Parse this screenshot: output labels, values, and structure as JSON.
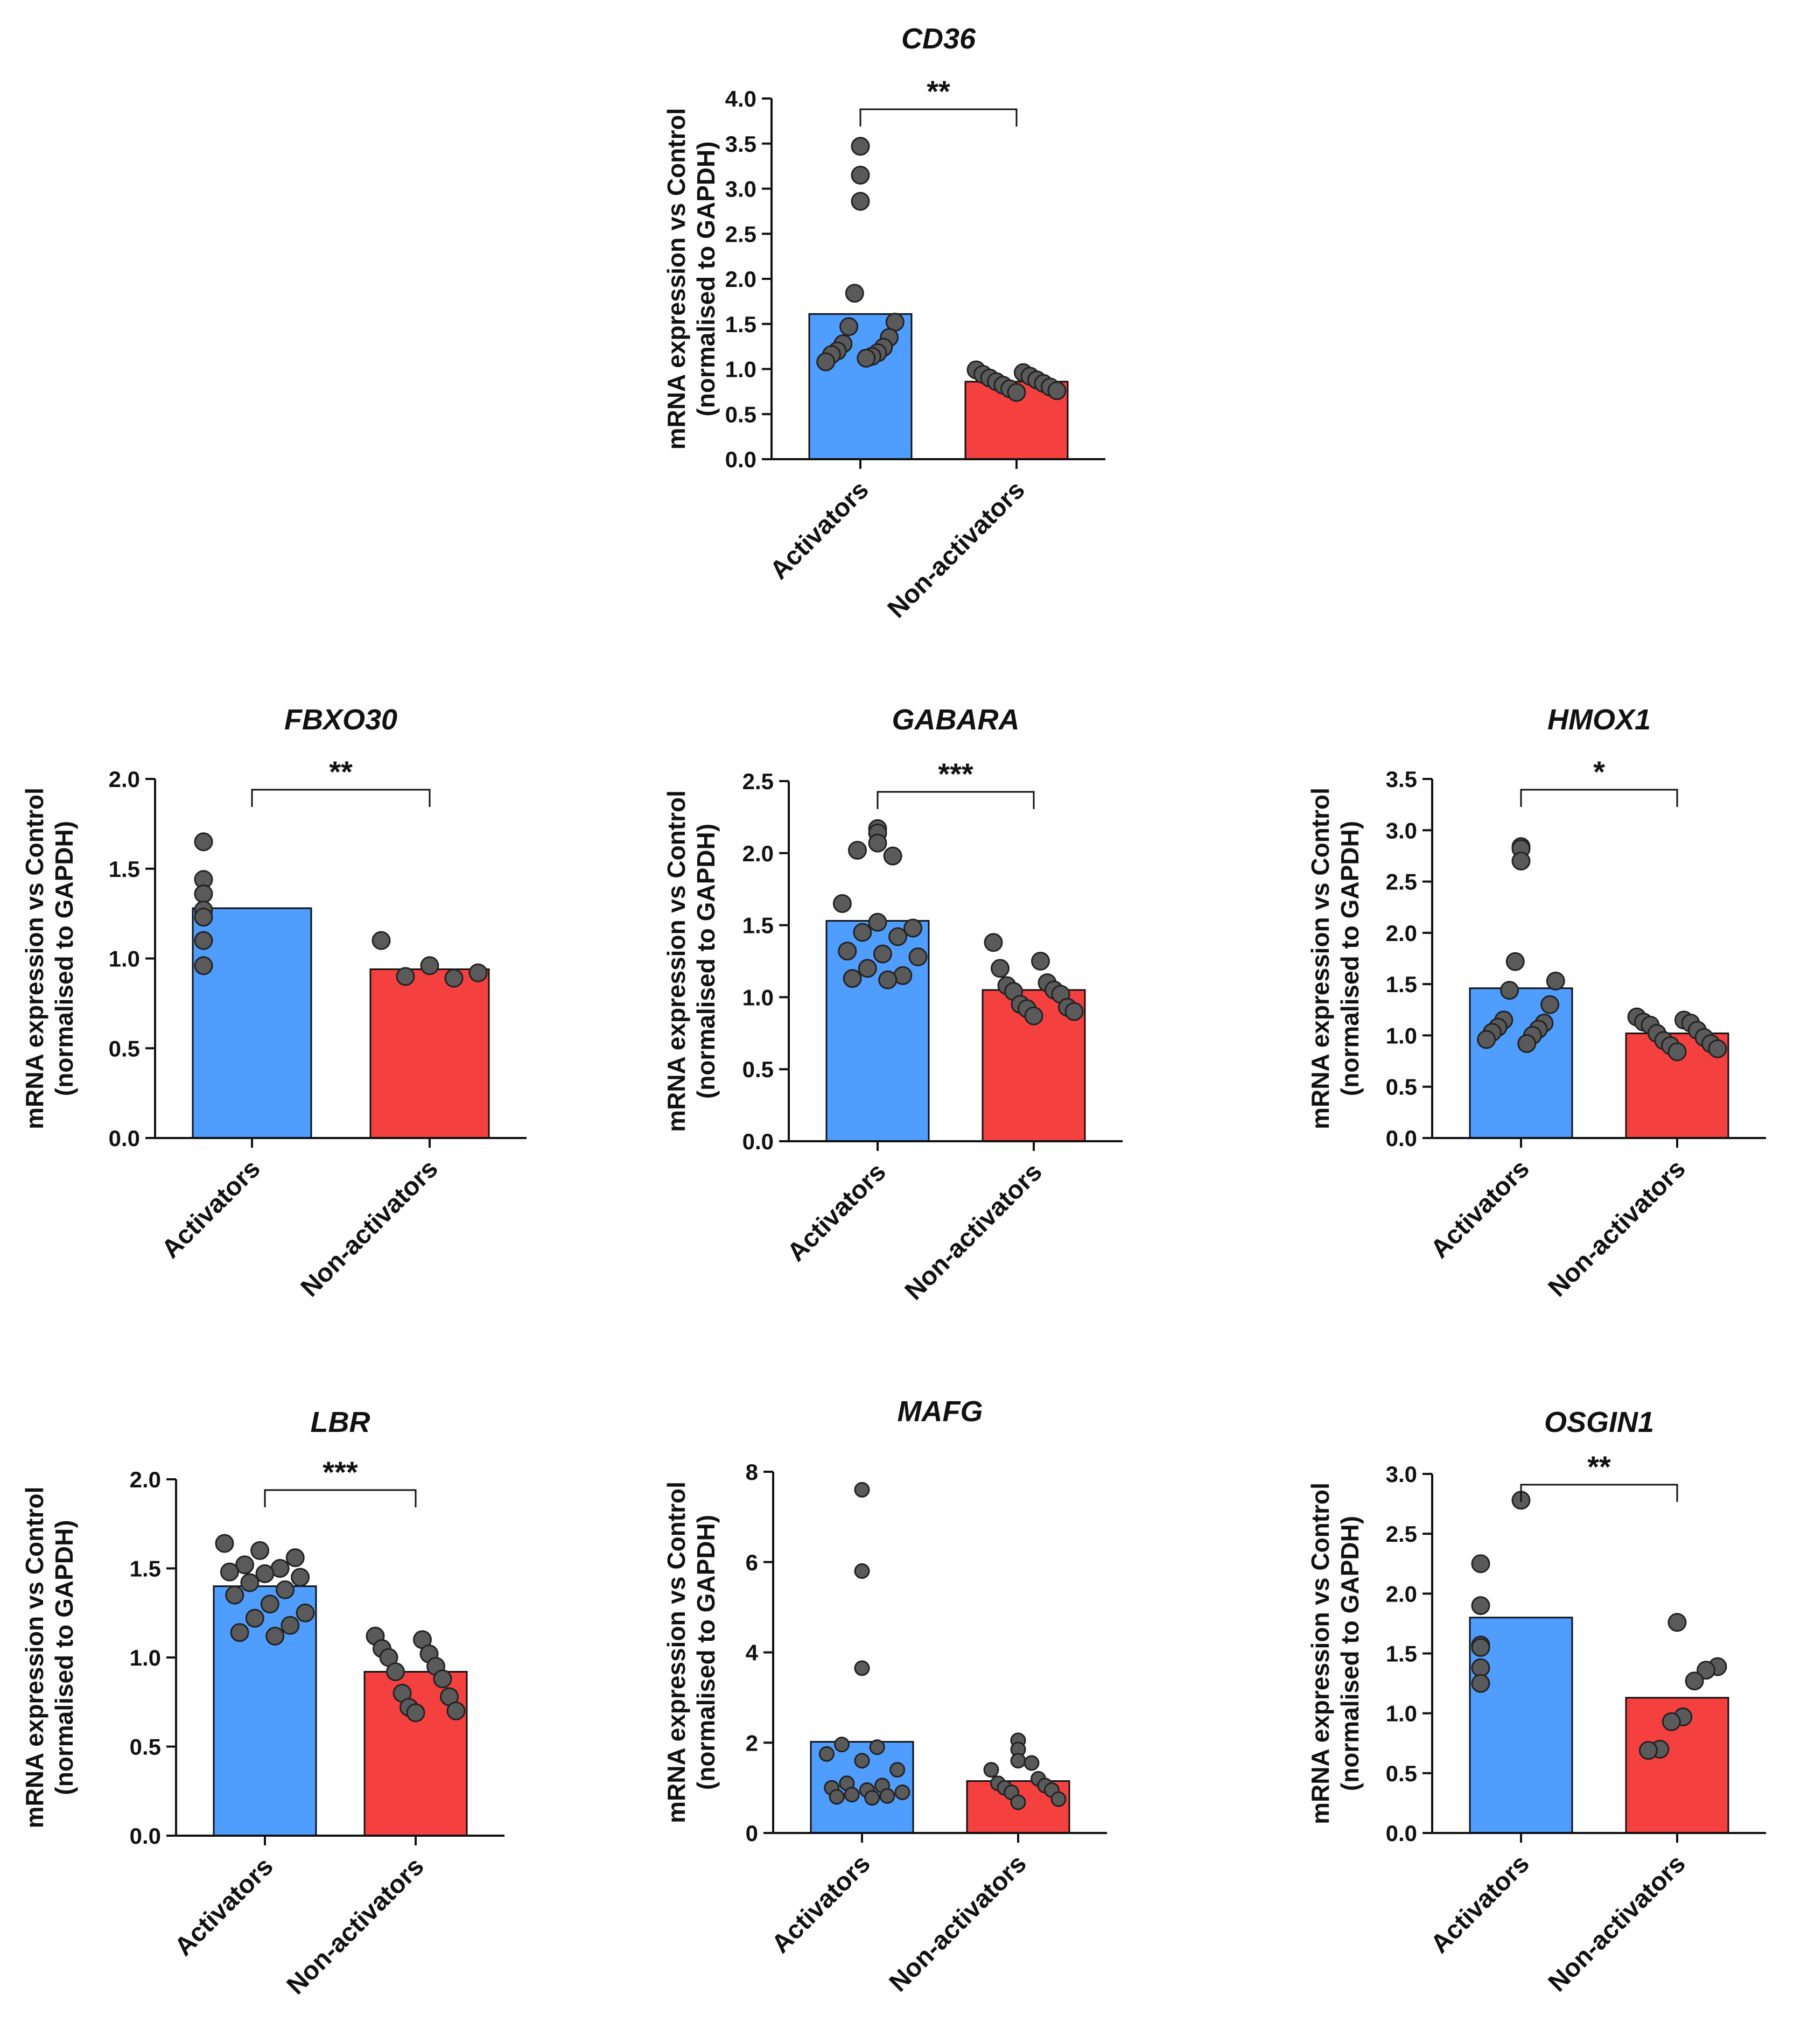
{
  "colors": {
    "activators": "#4f9dff",
    "non_activators": "#f54040",
    "points": "#5a5a5a"
  },
  "chart_data": [
    {
      "type": "bar",
      "title": "CD36",
      "ylabel_line1": "mRNA expression vs Control",
      "ylabel_line2": "(normalised to GAPDH)",
      "categories": [
        "Activators",
        "Non-activators"
      ],
      "values": [
        1.61,
        0.86
      ],
      "ylim": [
        0,
        4.0
      ],
      "yticks": [
        0,
        0.5,
        1.0,
        1.5,
        2.0,
        2.5,
        3.0,
        3.5,
        4.0
      ],
      "ytick_labels": [
        "0.0",
        "0.5",
        "1.0",
        "1.5",
        "2.0",
        "2.5",
        "3.0",
        "3.5",
        "4.0"
      ],
      "significance": "**",
      "points": [
        [
          3.47,
          3.15,
          2.86,
          1.84,
          1.52,
          1.47,
          1.35,
          1.28,
          1.24,
          1.2,
          1.18,
          1.16,
          1.14,
          1.08,
          1.12
        ],
        [
          0.99,
          0.96,
          0.94,
          0.92,
          0.9,
          0.88,
          0.86,
          0.84,
          0.82,
          0.8,
          0.78,
          0.76,
          0.74
        ]
      ]
    },
    {
      "type": "bar",
      "title": "FBXO30",
      "ylabel_line1": "mRNA expression vs Control",
      "ylabel_line2": "(normalised to GAPDH)",
      "categories": [
        "Activators",
        "Non-activators"
      ],
      "values": [
        1.28,
        0.94
      ],
      "ylim": [
        0,
        2.0
      ],
      "yticks": [
        0,
        0.5,
        1.0,
        1.5,
        2.0
      ],
      "ytick_labels": [
        "0.0",
        "0.5",
        "1.0",
        "1.5",
        "2.0"
      ],
      "significance": "**",
      "points": [
        [
          1.65,
          1.44,
          1.36,
          1.27,
          1.23,
          1.1,
          0.96
        ],
        [
          1.1,
          0.96,
          0.92,
          0.9,
          0.89
        ]
      ]
    },
    {
      "type": "bar",
      "title": "GABARA",
      "ylabel_line1": "mRNA expression vs Control",
      "ylabel_line2": "(normalised to GAPDH)",
      "categories": [
        "Activators",
        "Non-activators"
      ],
      "values": [
        1.53,
        1.05
      ],
      "ylim": [
        0,
        2.5
      ],
      "yticks": [
        0,
        0.5,
        1.0,
        1.5,
        2.0,
        2.5
      ],
      "ytick_labels": [
        "0.0",
        "0.5",
        "1.0",
        "1.5",
        "2.0",
        "2.5"
      ],
      "significance": "***",
      "points": [
        [
          2.17,
          2.14,
          2.07,
          2.02,
          1.98,
          1.65,
          1.52,
          1.48,
          1.45,
          1.42,
          1.32,
          1.3,
          1.28,
          1.2,
          1.15,
          1.13,
          1.12
        ],
        [
          1.38,
          1.25,
          1.2,
          1.1,
          1.08,
          1.05,
          1.04,
          1.02,
          0.95,
          0.93,
          0.92,
          0.9,
          0.87
        ]
      ]
    },
    {
      "type": "bar",
      "title": "HMOX1",
      "ylabel_line1": "mRNA expression vs Control",
      "ylabel_line2": "(normalised to GAPDH)",
      "categories": [
        "Activators",
        "Non-activators"
      ],
      "values": [
        1.46,
        1.02
      ],
      "ylim": [
        0,
        3.5
      ],
      "yticks": [
        0,
        0.5,
        1.0,
        1.5,
        2.0,
        2.5,
        3.0,
        3.5
      ],
      "ytick_labels": [
        "0.0",
        "0.5",
        "1.0",
        "1.5",
        "2.0",
        "2.5",
        "3.0",
        "3.5"
      ],
      "significance": "*",
      "points": [
        [
          2.84,
          2.82,
          2.7,
          1.72,
          1.53,
          1.44,
          1.3,
          1.15,
          1.12,
          1.08,
          1.06,
          1.03,
          1.0,
          0.96,
          0.92
        ],
        [
          1.18,
          1.15,
          1.13,
          1.12,
          1.1,
          1.05,
          1.02,
          0.98,
          0.95,
          0.92,
          0.9,
          0.87,
          0.84
        ]
      ]
    },
    {
      "type": "bar",
      "title": "LBR",
      "ylabel_line1": "mRNA expression vs Control",
      "ylabel_line2": "(normalised to GAPDH)",
      "categories": [
        "Activators",
        "Non-activators"
      ],
      "values": [
        1.4,
        0.92
      ],
      "ylim": [
        0,
        2.0
      ],
      "yticks": [
        0,
        0.5,
        1.0,
        1.5,
        2.0
      ],
      "ytick_labels": [
        "0.0",
        "0.5",
        "1.0",
        "1.5",
        "2.0"
      ],
      "significance": "***",
      "points": [
        [
          1.64,
          1.6,
          1.56,
          1.52,
          1.5,
          1.48,
          1.47,
          1.45,
          1.42,
          1.38,
          1.35,
          1.3,
          1.25,
          1.22,
          1.18,
          1.14,
          1.12
        ],
        [
          1.12,
          1.1,
          1.05,
          1.02,
          1.0,
          0.95,
          0.92,
          0.88,
          0.8,
          0.78,
          0.72,
          0.7,
          0.69
        ]
      ]
    },
    {
      "type": "bar",
      "title": "MAFG",
      "ylabel_line1": "mRNA expression vs Control",
      "ylabel_line2": "(normalised to GAPDH)",
      "categories": [
        "Activators",
        "Non-activators"
      ],
      "values": [
        2.02,
        1.15
      ],
      "ylim": [
        0,
        8
      ],
      "yticks": [
        0,
        2,
        4,
        6,
        8
      ],
      "ytick_labels": [
        "0",
        "2",
        "4",
        "6",
        "8"
      ],
      "significance": "",
      "points": [
        [
          7.6,
          5.8,
          3.65,
          1.96,
          1.9,
          1.75,
          1.6,
          1.4,
          1.1,
          1.05,
          1.0,
          0.95,
          0.9,
          0.85,
          0.82,
          0.8,
          0.78
        ],
        [
          2.05,
          1.85,
          1.6,
          1.55,
          1.4,
          1.2,
          1.1,
          1.05,
          1.0,
          0.95,
          0.9,
          0.75,
          0.68
        ]
      ]
    },
    {
      "type": "bar",
      "title": "OSGIN1",
      "ylabel_line1": "mRNA expression vs Control",
      "ylabel_line2": "(normalised to GAPDH)",
      "categories": [
        "Activators",
        "Non-activators"
      ],
      "values": [
        1.8,
        1.13
      ],
      "ylim": [
        0,
        3.0
      ],
      "yticks": [
        0,
        0.5,
        1.0,
        1.5,
        2.0,
        2.5,
        3.0
      ],
      "ytick_labels": [
        "0.0",
        "0.5",
        "1.0",
        "1.5",
        "2.0",
        "2.5",
        "3.0"
      ],
      "significance": "**",
      "points": [
        [
          2.78,
          2.25,
          1.9,
          1.57,
          1.55,
          1.38,
          1.25
        ],
        [
          1.76,
          1.39,
          1.36,
          1.27,
          0.97,
          0.93,
          0.7,
          0.69
        ]
      ]
    }
  ]
}
